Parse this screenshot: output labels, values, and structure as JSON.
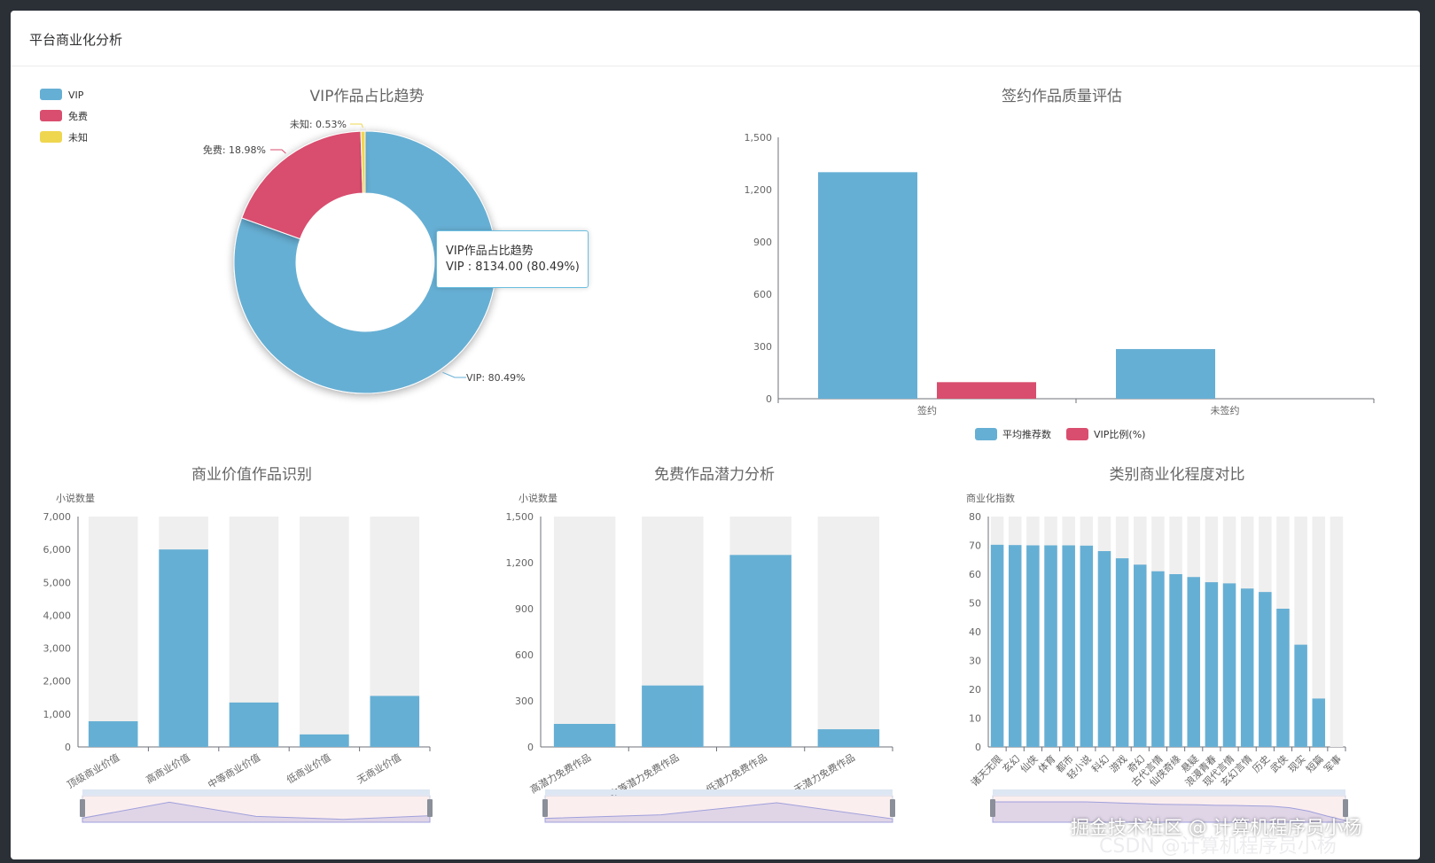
{
  "panel": {
    "title": "平台商业化分析"
  },
  "colors": {
    "blue": "#66afd4",
    "red": "#d94e6e",
    "yellow": "#efd64f",
    "bg_bar": "#efefef"
  },
  "watermark": {
    "text": "掘金技术社区 @ 计算机程序员小杨",
    "sub": "CSDN @计算机程序员小杨"
  },
  "tooltip": {
    "title": "VIP作品占比趋势",
    "value": "VIP : 8134.00 (80.49%)"
  },
  "chart_data": [
    {
      "type": "pie",
      "title": "VIP作品占比趋势",
      "legend": [
        "VIP",
        "免费",
        "未知"
      ],
      "slices": [
        {
          "name": "VIP",
          "value": 8134,
          "percent": 80.49,
          "label": "VIP: 80.49%"
        },
        {
          "name": "免费",
          "value": 1918,
          "percent": 18.98,
          "label": "免费: 18.98%"
        },
        {
          "name": "未知",
          "value": 54,
          "percent": 0.53,
          "label": "未知: 0.53%"
        }
      ]
    },
    {
      "type": "bar",
      "title": "签约作品质量评估",
      "categories": [
        "签约",
        "未签约"
      ],
      "series": [
        {
          "name": "平均推荐数",
          "values": [
            1300,
            285
          ]
        },
        {
          "name": "VIP比例(%)",
          "values": [
            95,
            0
          ]
        }
      ],
      "yticks": [
        "0",
        "300",
        "600",
        "900",
        "1,200",
        "1,500"
      ],
      "ylim": [
        0,
        1500
      ],
      "legend": [
        "平均推荐数",
        "VIP比例(%)"
      ]
    },
    {
      "type": "bar",
      "title": "商业价值作品识别",
      "ylabel": "小说数量",
      "categories": [
        "顶级商业价值",
        "高商业价值",
        "中等商业价值",
        "低商业价值",
        "无商业价值"
      ],
      "values": [
        780,
        6000,
        1350,
        380,
        1550
      ],
      "yticks": [
        "0",
        "1,000",
        "2,000",
        "3,000",
        "4,000",
        "5,000",
        "6,000",
        "7,000"
      ],
      "ylim": [
        0,
        7000
      ]
    },
    {
      "type": "bar",
      "title": "免费作品潜力分析",
      "ylabel": "小说数量",
      "categories": [
        "高潜力免费作品",
        "中等潜力免费作品",
        "低潜力免费作品",
        "无潜力免费作品"
      ],
      "values": [
        150,
        400,
        1250,
        115
      ],
      "yticks": [
        "0",
        "300",
        "600",
        "900",
        "1,200",
        "1,500"
      ],
      "ylim": [
        0,
        1500
      ]
    },
    {
      "type": "bar",
      "title": "类别商业化程度对比",
      "ylabel": "商业化指数",
      "categories": [
        "诸天无限",
        "玄幻",
        "仙侠",
        "体育",
        "都市",
        "轻小说",
        "科幻",
        "游戏",
        "奇幻",
        "古代言情",
        "仙侠奇缘",
        "悬疑",
        "浪漫青春",
        "现代言情",
        "玄幻言情",
        "历史",
        "武侠",
        "现实",
        "短篇",
        "军事"
      ],
      "values": [
        70.2,
        70.1,
        70.0,
        70.0,
        70.0,
        69.9,
        68.0,
        65.5,
        63.3,
        61.0,
        60.0,
        59.0,
        57.2,
        56.8,
        55.0,
        53.8,
        48.0,
        35.5,
        16.8,
        0
      ],
      "yticks": [
        "0",
        "10",
        "20",
        "30",
        "40",
        "50",
        "60",
        "70",
        "80"
      ],
      "ylim": [
        0,
        80
      ]
    }
  ]
}
